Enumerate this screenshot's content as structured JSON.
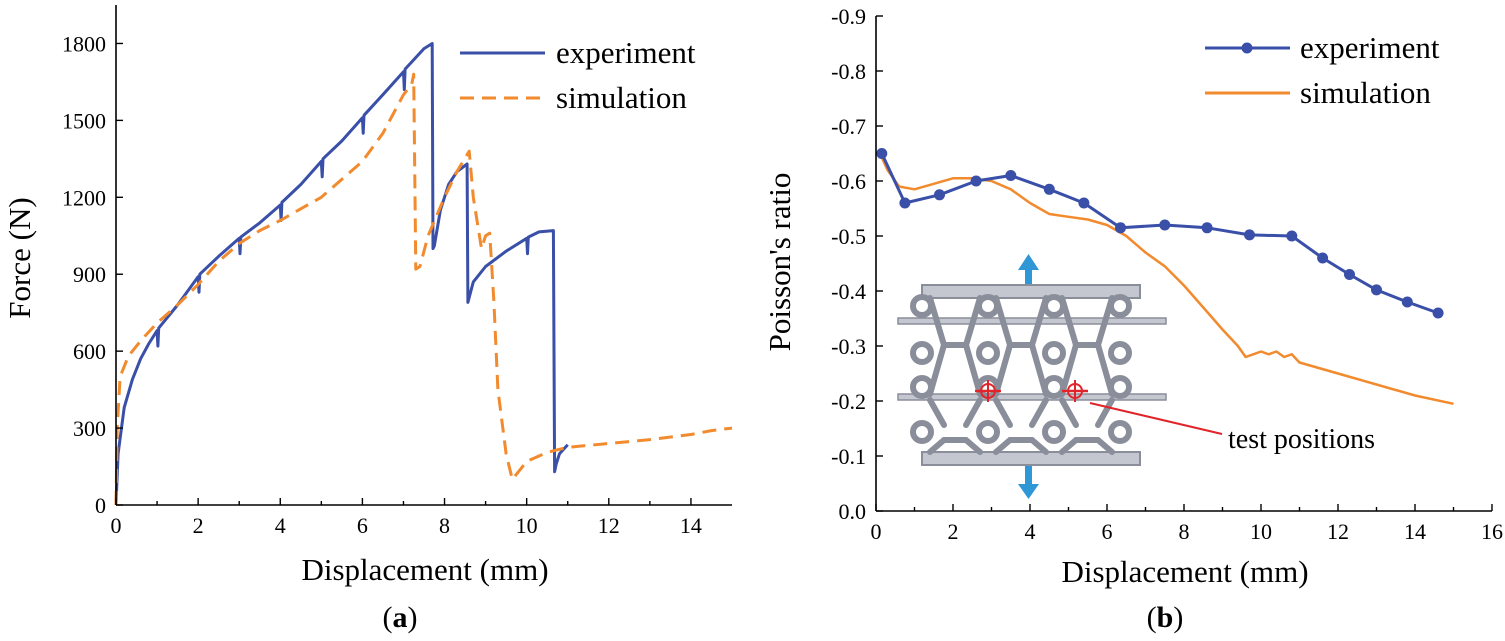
{
  "colors": {
    "experiment": "#3a4fa8",
    "simulation": "#f28a2e",
    "inset_frame": "#8a8e9a",
    "inset_fill": "#c4c7cf",
    "arrow": "#2f97d6",
    "marker": "#e0242a"
  },
  "chart_data": [
    {
      "type": "line",
      "caption_letter": "a",
      "title": "",
      "xlabel": "Displacement (mm)",
      "ylabel": "Force (N)",
      "xlim": [
        0,
        15
      ],
      "ylim": [
        0,
        1950
      ],
      "xticks": [
        0,
        2,
        4,
        6,
        8,
        10,
        12,
        14
      ],
      "yticks": [
        0,
        300,
        600,
        900,
        1200,
        1500,
        1800
      ],
      "legend": [
        "experiment",
        "simulation"
      ],
      "series": [
        {
          "name": "experiment",
          "style": "solid",
          "points": [
            [
              0,
              0
            ],
            [
              0.05,
              200
            ],
            [
              0.2,
              380
            ],
            [
              0.4,
              490
            ],
            [
              0.6,
              570
            ],
            [
              0.8,
              630
            ],
            [
              1.0,
              680
            ],
            [
              1.02,
              620
            ],
            [
              1.04,
              690
            ],
            [
              1.5,
              780
            ],
            [
              2.0,
              890
            ],
            [
              2.02,
              830
            ],
            [
              2.04,
              900
            ],
            [
              2.5,
              970
            ],
            [
              3.0,
              1040
            ],
            [
              3.02,
              980
            ],
            [
              3.04,
              1045
            ],
            [
              3.5,
              1100
            ],
            [
              4.0,
              1170
            ],
            [
              4.02,
              1110
            ],
            [
              4.04,
              1180
            ],
            [
              4.5,
              1250
            ],
            [
              5.0,
              1340
            ],
            [
              5.02,
              1280
            ],
            [
              5.04,
              1350
            ],
            [
              5.5,
              1420
            ],
            [
              6.0,
              1510
            ],
            [
              6.02,
              1450
            ],
            [
              6.04,
              1520
            ],
            [
              6.5,
              1600
            ],
            [
              7.0,
              1690
            ],
            [
              7.02,
              1620
            ],
            [
              7.04,
              1700
            ],
            [
              7.5,
              1780
            ],
            [
              7.7,
              1800
            ],
            [
              7.72,
              1000
            ],
            [
              7.75,
              1010
            ],
            [
              7.9,
              1150
            ],
            [
              8.0,
              1200
            ],
            [
              8.1,
              1250
            ],
            [
              8.3,
              1300
            ],
            [
              8.55,
              1330
            ],
            [
              8.57,
              790
            ],
            [
              8.7,
              870
            ],
            [
              9.0,
              930
            ],
            [
              9.5,
              990
            ],
            [
              10.0,
              1040
            ],
            [
              10.02,
              980
            ],
            [
              10.04,
              1045
            ],
            [
              10.3,
              1065
            ],
            [
              10.65,
              1070
            ],
            [
              10.68,
              130
            ],
            [
              10.72,
              160
            ],
            [
              10.8,
              200
            ],
            [
              11.0,
              235
            ]
          ]
        },
        {
          "name": "simulation",
          "style": "dashed",
          "points": [
            [
              0,
              0
            ],
            [
              0.03,
              300
            ],
            [
              0.1,
              500
            ],
            [
              0.3,
              580
            ],
            [
              0.6,
              640
            ],
            [
              1.0,
              710
            ],
            [
              1.5,
              780
            ],
            [
              2.0,
              860
            ],
            [
              2.5,
              950
            ],
            [
              3.0,
              1020
            ],
            [
              3.5,
              1070
            ],
            [
              4.0,
              1110
            ],
            [
              5.0,
              1200
            ],
            [
              6.0,
              1340
            ],
            [
              6.5,
              1450
            ],
            [
              7.0,
              1600
            ],
            [
              7.2,
              1640
            ],
            [
              7.25,
              1680
            ],
            [
              7.3,
              920
            ],
            [
              7.4,
              930
            ],
            [
              7.6,
              1050
            ],
            [
              8.0,
              1200
            ],
            [
              8.3,
              1300
            ],
            [
              8.6,
              1380
            ],
            [
              8.7,
              1200
            ],
            [
              8.9,
              1000
            ],
            [
              9.0,
              1050
            ],
            [
              9.1,
              1060
            ],
            [
              9.2,
              800
            ],
            [
              9.3,
              450
            ],
            [
              9.5,
              200
            ],
            [
              9.65,
              100
            ],
            [
              9.8,
              130
            ],
            [
              10.0,
              170
            ],
            [
              10.5,
              205
            ],
            [
              11.0,
              225
            ],
            [
              12.0,
              240
            ],
            [
              13.0,
              255
            ],
            [
              14.0,
              275
            ],
            [
              14.5,
              290
            ],
            [
              15.0,
              300
            ]
          ]
        }
      ]
    },
    {
      "type": "line",
      "caption_letter": "b",
      "title": "",
      "xlabel": "Displacement (mm)",
      "ylabel": "Poisson's ratio",
      "xlim": [
        0,
        16
      ],
      "ylim": [
        0.0,
        -0.9
      ],
      "xticks": [
        0,
        2,
        4,
        6,
        8,
        10,
        12,
        14,
        16
      ],
      "yticks": [
        0.0,
        -0.1,
        -0.2,
        -0.3,
        -0.4,
        -0.5,
        -0.6,
        -0.7,
        -0.8,
        -0.9
      ],
      "ytick_labels": [
        "0.0",
        "-0.1",
        "-0.2",
        "-0.3",
        "-0.4",
        "-0.5",
        "-0.6",
        "-0.7",
        "-0.8",
        "-0.9"
      ],
      "legend": [
        "experiment",
        "simulation"
      ],
      "annotation": "test positions",
      "series": [
        {
          "name": "experiment",
          "style": "solid-markers",
          "points": [
            [
              0.15,
              -0.65
            ],
            [
              0.75,
              -0.56
            ],
            [
              1.65,
              -0.575
            ],
            [
              2.6,
              -0.6
            ],
            [
              3.5,
              -0.61
            ],
            [
              4.5,
              -0.585
            ],
            [
              5.4,
              -0.56
            ],
            [
              6.35,
              -0.515
            ],
            [
              7.5,
              -0.52
            ],
            [
              8.6,
              -0.515
            ],
            [
              9.7,
              -0.502
            ],
            [
              10.8,
              -0.5
            ],
            [
              11.6,
              -0.46
            ],
            [
              12.3,
              -0.43
            ],
            [
              13.0,
              -0.402
            ],
            [
              13.8,
              -0.38
            ],
            [
              14.6,
              -0.36
            ]
          ]
        },
        {
          "name": "simulation",
          "style": "solid",
          "points": [
            [
              0.1,
              -0.65
            ],
            [
              0.3,
              -0.62
            ],
            [
              0.6,
              -0.59
            ],
            [
              1.0,
              -0.585
            ],
            [
              1.5,
              -0.595
            ],
            [
              2.0,
              -0.605
            ],
            [
              2.5,
              -0.605
            ],
            [
              3.0,
              -0.6
            ],
            [
              3.5,
              -0.585
            ],
            [
              4.0,
              -0.56
            ],
            [
              4.5,
              -0.54
            ],
            [
              5.0,
              -0.535
            ],
            [
              5.5,
              -0.53
            ],
            [
              6.0,
              -0.52
            ],
            [
              6.5,
              -0.5
            ],
            [
              7.0,
              -0.47
            ],
            [
              7.5,
              -0.445
            ],
            [
              8.0,
              -0.41
            ],
            [
              8.5,
              -0.37
            ],
            [
              9.0,
              -0.33
            ],
            [
              9.4,
              -0.3
            ],
            [
              9.6,
              -0.28
            ],
            [
              9.8,
              -0.285
            ],
            [
              10.0,
              -0.29
            ],
            [
              10.2,
              -0.285
            ],
            [
              10.4,
              -0.29
            ],
            [
              10.6,
              -0.28
            ],
            [
              10.8,
              -0.285
            ],
            [
              11.0,
              -0.27
            ],
            [
              12.0,
              -0.25
            ],
            [
              13.0,
              -0.23
            ],
            [
              14.0,
              -0.21
            ],
            [
              15.0,
              -0.195
            ]
          ]
        }
      ]
    }
  ]
}
